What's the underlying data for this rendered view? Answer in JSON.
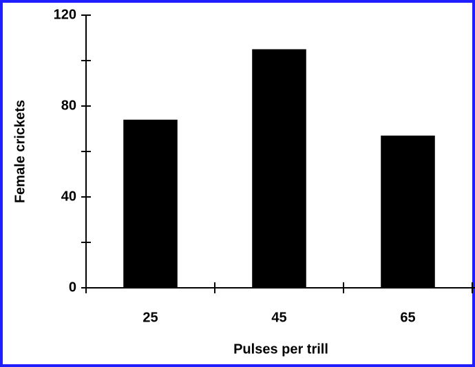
{
  "chart_data": {
    "type": "bar",
    "x_label": "Pulses per trill",
    "y_label": "Female crickets",
    "categories": [
      "25",
      "45",
      "65"
    ],
    "values": [
      74,
      105,
      67
    ],
    "color": "#000000",
    "ylim": [
      0,
      120
    ],
    "yticks": [
      0,
      40,
      80,
      120
    ],
    "y_minor_ticks": [
      20,
      60,
      100
    ],
    "grid": false,
    "frame_color": "#1f1fff"
  }
}
